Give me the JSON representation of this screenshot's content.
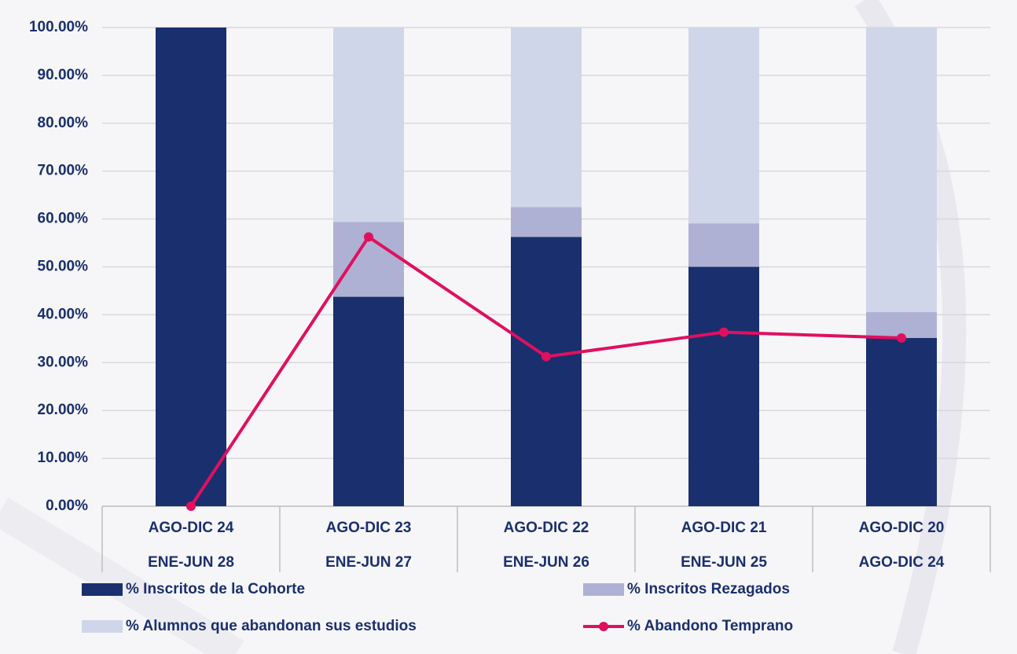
{
  "chart_data": {
    "type": "bar",
    "stacked": true,
    "categories": [
      [
        "AGO-DIC 24",
        "ENE-JUN 28"
      ],
      [
        "AGO-DIC 23",
        "ENE-JUN 27"
      ],
      [
        "AGO-DIC 22",
        "ENE-JUN 26"
      ],
      [
        "AGO-DIC 21",
        "ENE-JUN 25"
      ],
      [
        "AGO-DIC 20",
        "AGO-DIC 24"
      ]
    ],
    "series": [
      {
        "name": "% Inscritos de la Cohorte",
        "color": "#1a2f6e",
        "values": [
          100,
          43.75,
          56.25,
          50,
          35.14
        ]
      },
      {
        "name": "% Inscritos Rezagados",
        "color": "#aeb1d3",
        "values": [
          0,
          15.62,
          6.25,
          9.09,
          5.41
        ]
      },
      {
        "name": "% Alumnos que abandonan sus estudios",
        "color": "#cfd6ea",
        "values": [
          0,
          40.63,
          37.5,
          40.91,
          59.46
        ]
      },
      {
        "name": "% Abandono Temprano",
        "color": "#e0105f",
        "type": "line",
        "values": [
          0,
          56.25,
          31.25,
          36.36,
          35.14
        ]
      }
    ],
    "ylim": [
      0,
      100
    ],
    "yticks": [
      {
        "value": 0,
        "label": "0.00%"
      },
      {
        "value": 10,
        "label": "10.00%"
      },
      {
        "value": 20,
        "label": "20.00%"
      },
      {
        "value": 30,
        "label": "30.00%"
      },
      {
        "value": 40,
        "label": "40.00%"
      },
      {
        "value": 50,
        "label": "50.00%"
      },
      {
        "value": 60,
        "label": "60.00%"
      },
      {
        "value": 70,
        "label": "70.00%"
      },
      {
        "value": 80,
        "label": "80.00%"
      },
      {
        "value": 90,
        "label": "90.00%"
      },
      {
        "value": 100,
        "label": "100.00%"
      }
    ],
    "grid": true
  }
}
